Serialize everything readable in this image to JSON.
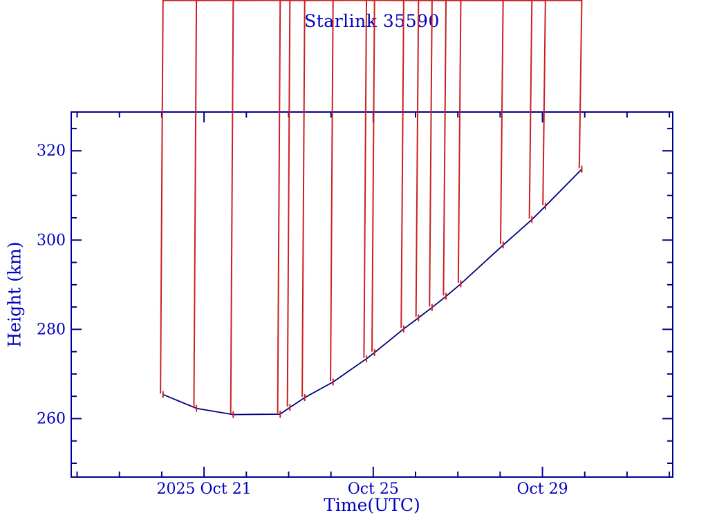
{
  "window": {
    "background": "#ffffff"
  },
  "colors": {
    "text": "#0000BE",
    "frame": "#000090",
    "line": "#000080",
    "marker": "#CC2020"
  },
  "chart_data": {
    "type": "line",
    "title": "Starlink 35590",
    "xlabel": "Time(UTC)",
    "ylabel": "Height (km)",
    "grid": false,
    "legend": null,
    "marker_style": "red-asterisk",
    "x_axis": {
      "unit": "days relative to 2025 Oct 21 00:00 UTC",
      "lim": [
        -3.14,
        11.08
      ],
      "major_ticks": [
        {
          "value": 0,
          "label": "2025 Oct 21"
        },
        {
          "value": 4,
          "label": "Oct 25"
        },
        {
          "value": 8,
          "label": "Oct 29"
        }
      ],
      "minor_ticks": [
        -3,
        -2,
        -1,
        0,
        1,
        2,
        3,
        4,
        5,
        6,
        7,
        8,
        9,
        10,
        11
      ]
    },
    "y_axis": {
      "unit": "km",
      "lim": [
        246.9,
        328.7
      ],
      "major_ticks": [
        {
          "value": 260,
          "label": "260"
        },
        {
          "value": 280,
          "label": "280"
        },
        {
          "value": 300,
          "label": "300"
        },
        {
          "value": 320,
          "label": "320"
        }
      ],
      "minor_ticks": [
        250,
        255,
        260,
        265,
        270,
        275,
        280,
        285,
        290,
        295,
        300,
        305,
        310,
        315,
        320,
        325
      ]
    },
    "series": [
      {
        "name": "orbit-height",
        "points": [
          [
            -0.97,
            265.4
          ],
          [
            -0.18,
            262.3
          ],
          [
            0.69,
            260.9
          ],
          [
            1.8,
            261.0
          ],
          [
            2.03,
            262.5
          ],
          [
            2.38,
            264.7
          ],
          [
            3.05,
            268.2
          ],
          [
            3.84,
            273.4
          ],
          [
            4.03,
            274.8
          ],
          [
            4.72,
            280.1
          ],
          [
            5.07,
            282.6
          ],
          [
            5.39,
            284.9
          ],
          [
            5.72,
            287.4
          ],
          [
            6.07,
            290.2
          ],
          [
            7.07,
            298.9
          ],
          [
            7.75,
            304.6
          ],
          [
            8.07,
            307.6
          ],
          [
            8.93,
            315.9
          ]
        ]
      }
    ]
  }
}
